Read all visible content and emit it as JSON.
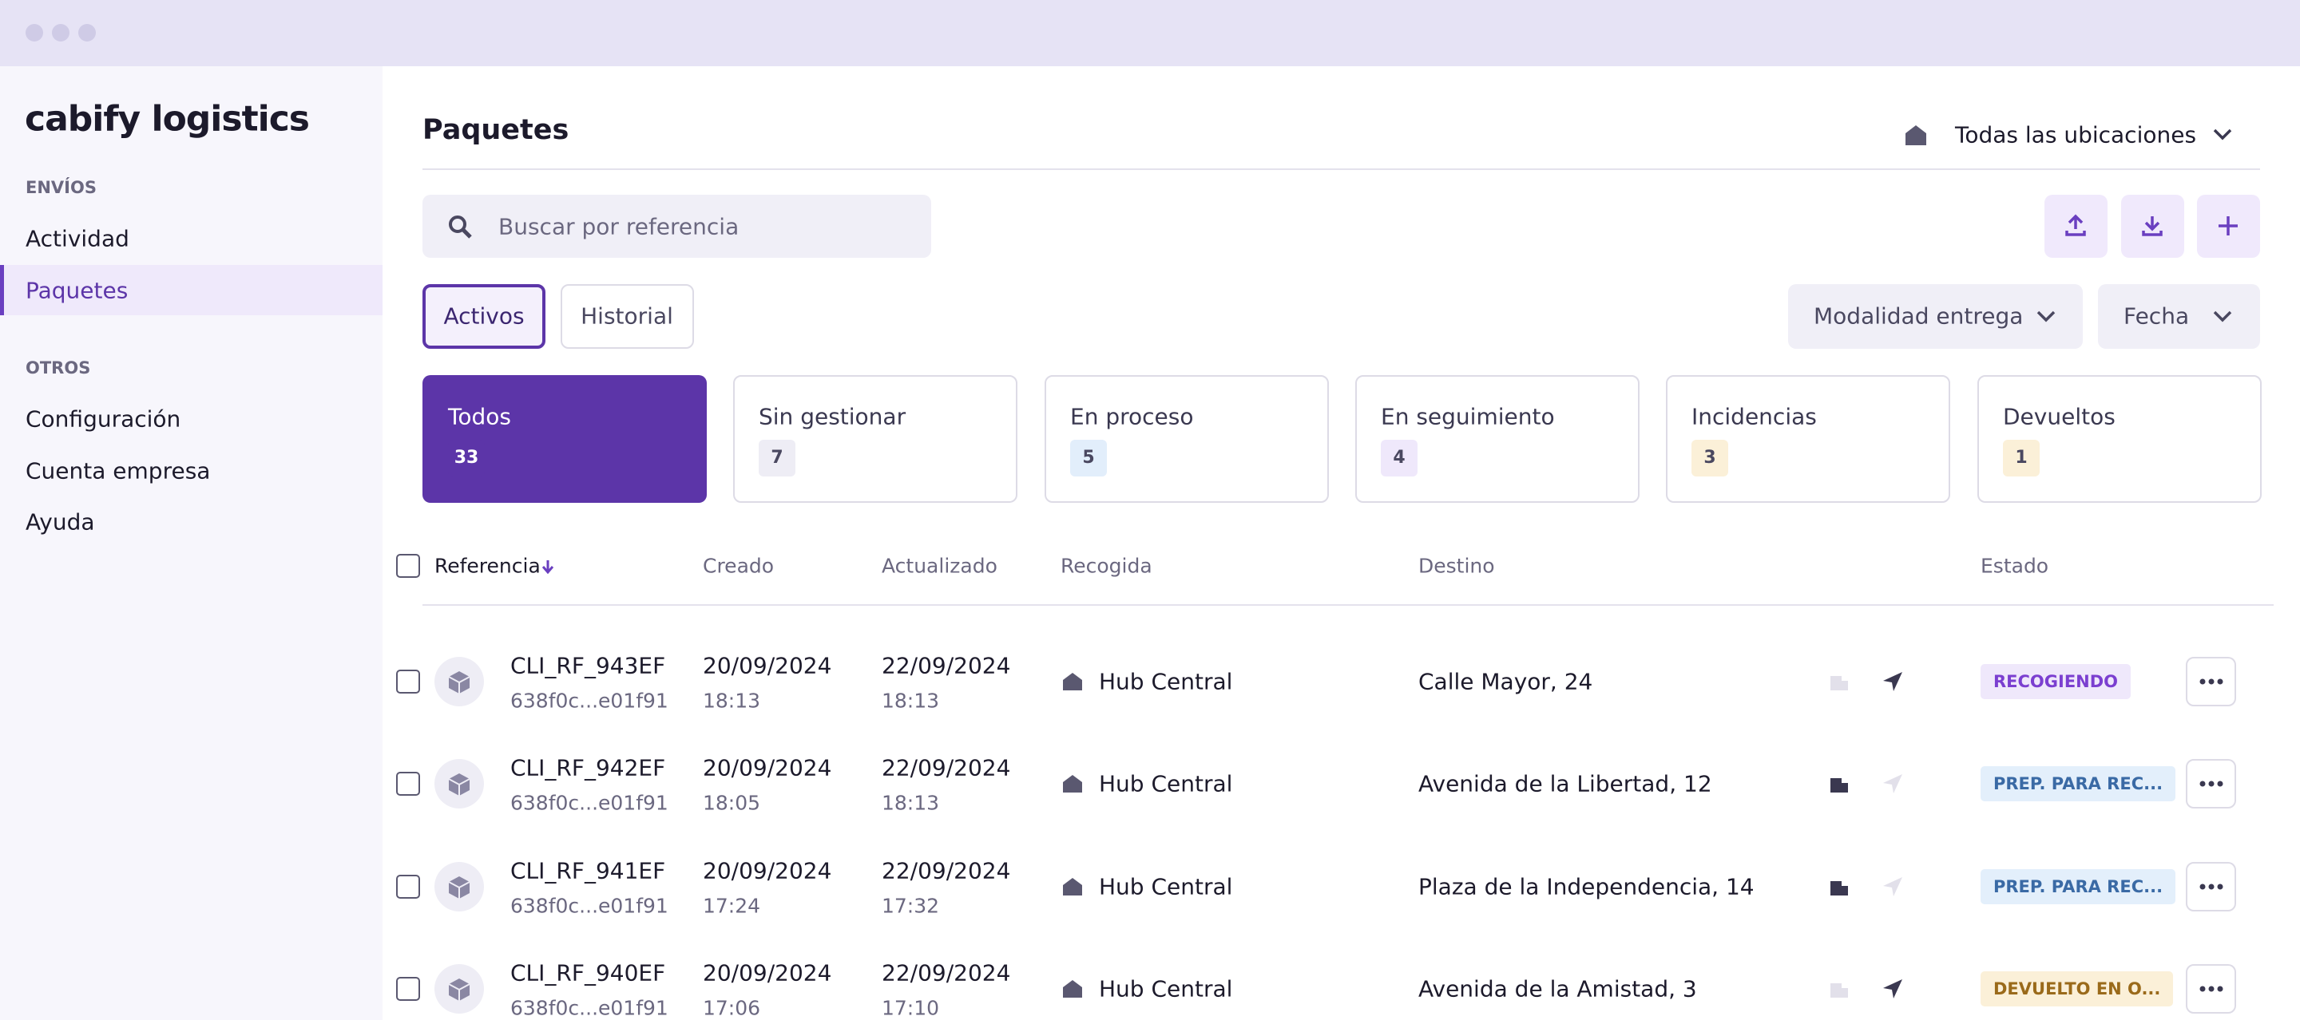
{
  "sidebar": {
    "logo": "cabify logistics",
    "sections": [
      {
        "title": "ENVÍOS",
        "items": [
          "Actividad",
          "Paquetes"
        ]
      },
      {
        "title": "OTROS",
        "items": [
          "Configuración",
          "Cuenta empresa",
          "Ayuda"
        ]
      }
    ]
  },
  "header": {
    "title": "Paquetes",
    "location": "Todas las ubicaciones"
  },
  "search": {
    "placeholder": "Buscar por referencia"
  },
  "tabs": [
    "Activos",
    "Historial"
  ],
  "filters": [
    "Modalidad entrega",
    "Fecha"
  ],
  "cards": [
    {
      "label": "Todos",
      "count": "33",
      "color": "#5c35a8"
    },
    {
      "label": "Sin gestionar",
      "count": "7",
      "color": "#eeedf5"
    },
    {
      "label": "En proceso",
      "count": "5",
      "color": "#e2eefb"
    },
    {
      "label": "En seguimiento",
      "count": "4",
      "color": "#efe8fb"
    },
    {
      "label": "Incidencias",
      "count": "3",
      "color": "#fbf0d8"
    },
    {
      "label": "Devueltos",
      "count": "1",
      "color": "#fbf0d8"
    }
  ],
  "table": {
    "columns": [
      "Referencia",
      "Creado",
      "Actualizado",
      "Recogida",
      "Destino",
      "Estado"
    ],
    "rows": [
      {
        "ref": "CLI_RF_943EF",
        "id": "638f0c...e01f91",
        "created_date": "20/09/2024",
        "created_time": "18:13",
        "updated_date": "22/09/2024",
        "updated_time": "18:13",
        "pickup": "Hub Central",
        "destination": "Calle Mayor, 24",
        "status": "RECOGIENDO",
        "color": "#7b3fd0",
        "bg": "#efe8fb"
      },
      {
        "ref": "CLI_RF_942EF",
        "id": "638f0c...e01f91",
        "created_date": "20/09/2024",
        "created_time": "18:05",
        "updated_date": "22/09/2024",
        "updated_time": "18:13",
        "pickup": "Hub Central",
        "destination": "Avenida de la Libertad, 12",
        "status": "PREP. PARA REC...",
        "color": "#3a6aa5",
        "bg": "#e3effb"
      },
      {
        "ref": "CLI_RF_941EF",
        "id": "638f0c...e01f91",
        "created_date": "20/09/2024",
        "created_time": "17:24",
        "updated_date": "22/09/2024",
        "updated_time": "17:32",
        "pickup": "Hub Central",
        "destination": "Plaza de la Independencia, 14",
        "status": "PREP. PARA REC...",
        "color": "#3a6aa5",
        "bg": "#e3effb"
      },
      {
        "ref": "CLI_RF_940EF",
        "id": "638f0c...e01f91",
        "created_date": "20/09/2024",
        "created_time": "17:06",
        "updated_date": "22/09/2024",
        "updated_time": "17:10",
        "pickup": "Hub Central",
        "destination": "Avenida de la Amistad, 3",
        "status": "DEVUELTO EN O...",
        "color": "#9a6a1a",
        "bg": "#fbf0d8"
      }
    ]
  }
}
